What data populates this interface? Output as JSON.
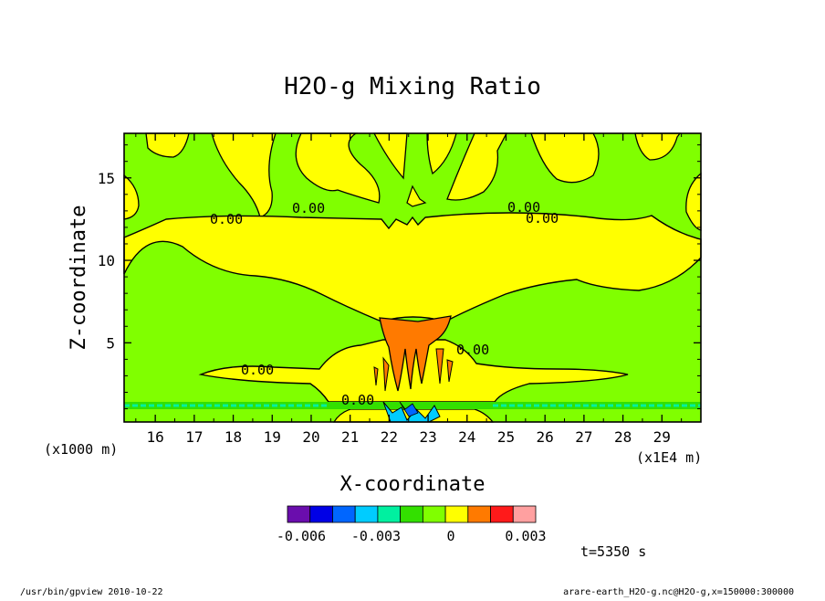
{
  "chart_data": {
    "type": "heatmap",
    "title": "H2O-g Mixing Ratio",
    "xlabel": "X-coordinate",
    "ylabel": "Z-coordinate",
    "x_unit_note": "(x1E4 m)",
    "y_unit_note": "(x1000 m)",
    "xlim": [
      15.2,
      30.0
    ],
    "ylim": [
      0.2,
      17.7
    ],
    "x_ticks": [
      "16",
      "17",
      "18",
      "19",
      "20",
      "21",
      "22",
      "23",
      "24",
      "25",
      "26",
      "27",
      "28",
      "29"
    ],
    "y_ticks": [
      "5",
      "10",
      "15"
    ],
    "contour_labels": [
      "0.00",
      "0.00",
      "0.00",
      "0.00",
      "0.00",
      "0.00",
      "0.00"
    ],
    "colorbar": {
      "colors": [
        "#6a0dad",
        "#0000e6",
        "#0066ff",
        "#00ccff",
        "#00f0a0",
        "#33e000",
        "#80ff00",
        "#ffff00",
        "#ff7a00",
        "#ff1a1a",
        "#ffa0a0"
      ],
      "tick_labels": [
        "-0.006",
        "-0.003",
        "0",
        "0.003"
      ]
    },
    "time_label": "t=5350 s"
  },
  "footer": {
    "left": "/usr/bin/gpview  2010-10-22",
    "right": "arare-earth_H2O-g.nc@H2O-g,x=150000:300000"
  },
  "colors": {
    "background_field": "#80ff00",
    "moist_band": "#ffff00",
    "core": "#ff7a00",
    "negative": "#00ccff"
  }
}
